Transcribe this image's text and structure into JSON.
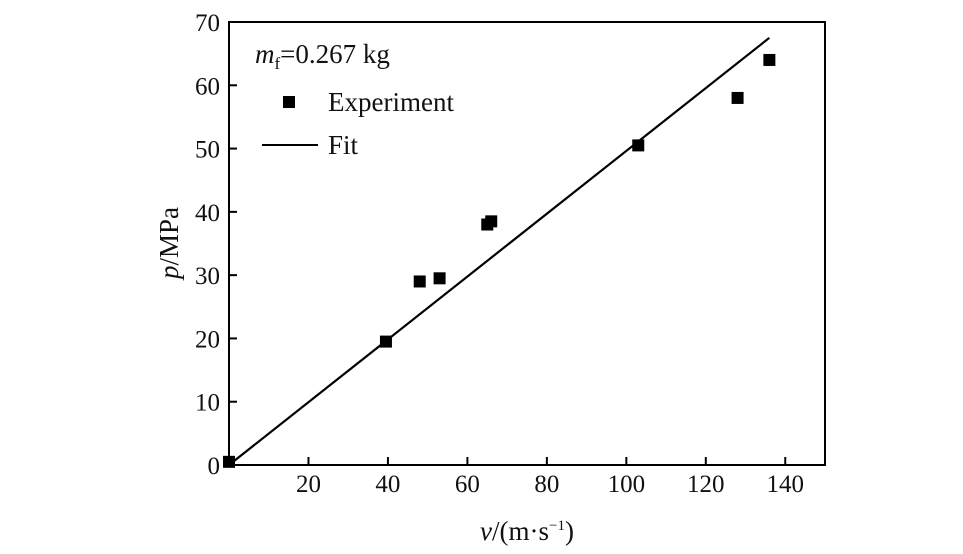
{
  "chart_data": {
    "type": "scatter",
    "xlabel": "v/(m·s⁻¹)",
    "xlabel_var": "v",
    "xlabel_unit": "/(m·s",
    "xlabel_exp": "−1",
    "xlabel_close": ")",
    "ylabel": "p/MPa",
    "ylabel_var": "p",
    "ylabel_unit": "/MPa",
    "xlim": [
      0,
      150
    ],
    "ylim": [
      0,
      70
    ],
    "x_ticks": [
      20,
      40,
      60,
      80,
      100,
      120,
      140
    ],
    "y_ticks": [
      0,
      10,
      20,
      30,
      40,
      50,
      60,
      70
    ],
    "annotation": {
      "var": "m",
      "sub": "f",
      "value": "=0.267 kg"
    },
    "legend_position": "top-left",
    "legend": [
      {
        "label": "Experiment",
        "marker": "square"
      },
      {
        "label": "Fit",
        "marker": "line"
      }
    ],
    "series": [
      {
        "name": "Experiment",
        "kind": "scatter",
        "color": "#000000",
        "points": [
          {
            "x": 0,
            "y": 0.5
          },
          {
            "x": 39.5,
            "y": 19.5
          },
          {
            "x": 48,
            "y": 29
          },
          {
            "x": 53,
            "y": 29.5
          },
          {
            "x": 65,
            "y": 38
          },
          {
            "x": 66,
            "y": 38.5
          },
          {
            "x": 103,
            "y": 50.5
          },
          {
            "x": 128,
            "y": 58
          },
          {
            "x": 136,
            "y": 64
          }
        ]
      },
      {
        "name": "Fit",
        "kind": "line",
        "color": "#000000",
        "points": [
          {
            "x": 0,
            "y": 0
          },
          {
            "x": 136,
            "y": 67.5
          }
        ]
      }
    ]
  }
}
